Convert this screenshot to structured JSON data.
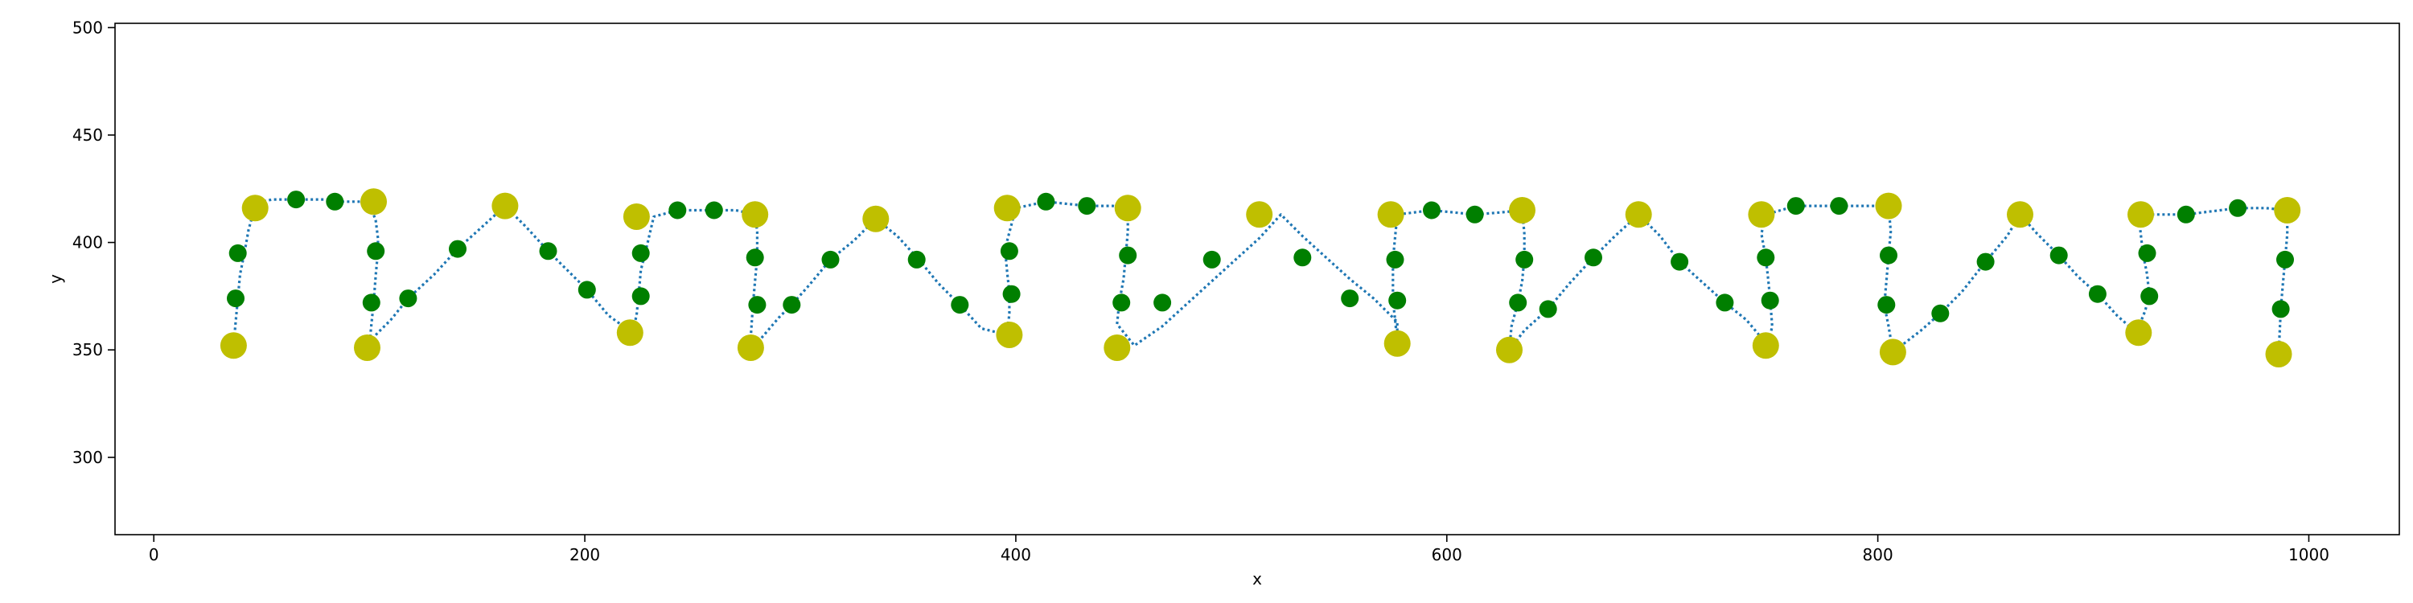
{
  "chart_data": {
    "type": "scatter",
    "xlabel": "x",
    "ylabel": "y",
    "xlim": [
      -18,
      1042
    ],
    "ylim": [
      264,
      502
    ],
    "xticks": [
      0,
      200,
      400,
      600,
      800,
      1000
    ],
    "yticks": [
      300,
      350,
      400,
      450,
      500
    ],
    "grid": false,
    "colors": {
      "path": "#1f77b4",
      "small_points": "#007f00",
      "large_points": "#bfbf00"
    },
    "path": {
      "x": [
        37,
        38,
        39,
        40,
        42,
        44,
        47,
        50,
        55,
        60,
        65,
        70,
        75,
        80,
        85,
        90,
        95,
        100,
        103,
        104,
        104,
        103,
        102,
        101,
        100,
        99,
        110,
        118,
        130,
        141,
        152,
        163,
        173,
        183,
        192,
        201,
        211,
        222,
        224,
        225,
        226,
        228,
        232,
        243,
        260,
        270,
        279,
        280,
        280,
        279,
        278,
        277,
        279,
        290,
        296,
        304,
        314,
        325,
        335,
        345,
        355,
        364,
        374,
        384,
        396,
        397,
        397,
        396,
        395,
        400,
        414,
        433,
        445,
        452,
        452,
        451,
        450,
        448,
        447,
        455,
        468,
        480,
        491,
        502,
        513,
        523,
        533,
        544,
        555,
        566,
        577,
        577,
        576,
        575,
        575,
        575,
        577,
        593,
        613,
        625,
        635,
        636,
        636,
        635,
        633,
        630,
        629,
        636,
        647,
        657,
        668,
        678,
        689,
        699,
        708,
        718,
        729,
        739,
        749,
        751,
        750,
        749,
        748,
        746,
        748,
        762,
        782,
        795,
        805,
        806,
        805,
        804,
        803,
        805,
        807,
        820,
        829,
        839,
        850,
        860,
        866,
        874,
        884,
        893,
        902,
        911,
        920,
        924,
        926,
        925,
        923,
        921,
        925,
        943,
        967,
        980,
        990,
        990,
        989,
        988,
        987,
        986
      ],
      "y": [
        352,
        363,
        374,
        385,
        395,
        406,
        417,
        419,
        420,
        420,
        420,
        420,
        420,
        420,
        419,
        419,
        419,
        419,
        410,
        402,
        396,
        385,
        372,
        362,
        352,
        353,
        364,
        374,
        385,
        397,
        407,
        417,
        407,
        396,
        387,
        378,
        366,
        358,
        366,
        376,
        387,
        395,
        412,
        415,
        415,
        415,
        413,
        405,
        393,
        382,
        371,
        356,
        352,
        365,
        371,
        380,
        392,
        401,
        411,
        403,
        392,
        381,
        371,
        360,
        357,
        367,
        377,
        386,
        397,
        416,
        419,
        417,
        417,
        416,
        405,
        394,
        383,
        372,
        362,
        352,
        361,
        372,
        382,
        392,
        402,
        413,
        403,
        393,
        383,
        374,
        363,
        354,
        364,
        373,
        383,
        392,
        413,
        415,
        413,
        414,
        415,
        404,
        393,
        382,
        372,
        361,
        350,
        359,
        369,
        381,
        393,
        403,
        413,
        403,
        391,
        382,
        372,
        364,
        352,
        361,
        374,
        384,
        393,
        404,
        413,
        417,
        417,
        417,
        417,
        405,
        394,
        382,
        371,
        361,
        349,
        359,
        367,
        377,
        391,
        403,
        413,
        404,
        394,
        384,
        376,
        366,
        358,
        368,
        375,
        385,
        395,
        413,
        413,
        413,
        416,
        416,
        415,
        404,
        392,
        381,
        369,
        348
      ]
    },
    "small_points": {
      "x": [
        38,
        39,
        66,
        84,
        103,
        101,
        118,
        141,
        183,
        201,
        226,
        226,
        243,
        260,
        279,
        280,
        296,
        314,
        354,
        374,
        397,
        398,
        414,
        433,
        452,
        449,
        468,
        491,
        533,
        555,
        576,
        577,
        593,
        613,
        636,
        633,
        647,
        668,
        708,
        729,
        748,
        750,
        762,
        782,
        805,
        804,
        829,
        850,
        884,
        902,
        925,
        926,
        943,
        967,
        989,
        987
      ],
      "y": [
        374,
        395,
        420,
        419,
        396,
        372,
        374,
        397,
        396,
        378,
        375,
        395,
        415,
        415,
        393,
        371,
        371,
        392,
        392,
        371,
        396,
        376,
        419,
        417,
        394,
        372,
        372,
        392,
        393,
        374,
        392,
        373,
        415,
        413,
        392,
        372,
        369,
        393,
        391,
        372,
        393,
        373,
        417,
        417,
        394,
        371,
        367,
        391,
        394,
        376,
        395,
        375,
        413,
        416,
        392,
        369
      ]
    },
    "large_points": {
      "x": [
        37,
        47,
        102,
        99,
        163,
        221,
        224,
        279,
        277,
        335,
        396,
        397,
        452,
        447,
        513,
        577,
        574,
        635,
        629,
        689,
        748,
        746,
        805,
        807,
        866,
        921,
        922,
        990,
        986
      ],
      "y": [
        352,
        416,
        419,
        351,
        417,
        358,
        412,
        413,
        351,
        411,
        416,
        357,
        416,
        351,
        413,
        353,
        413,
        415,
        350,
        413,
        352,
        413,
        417,
        349,
        413,
        358,
        413,
        415,
        348
      ]
    }
  }
}
